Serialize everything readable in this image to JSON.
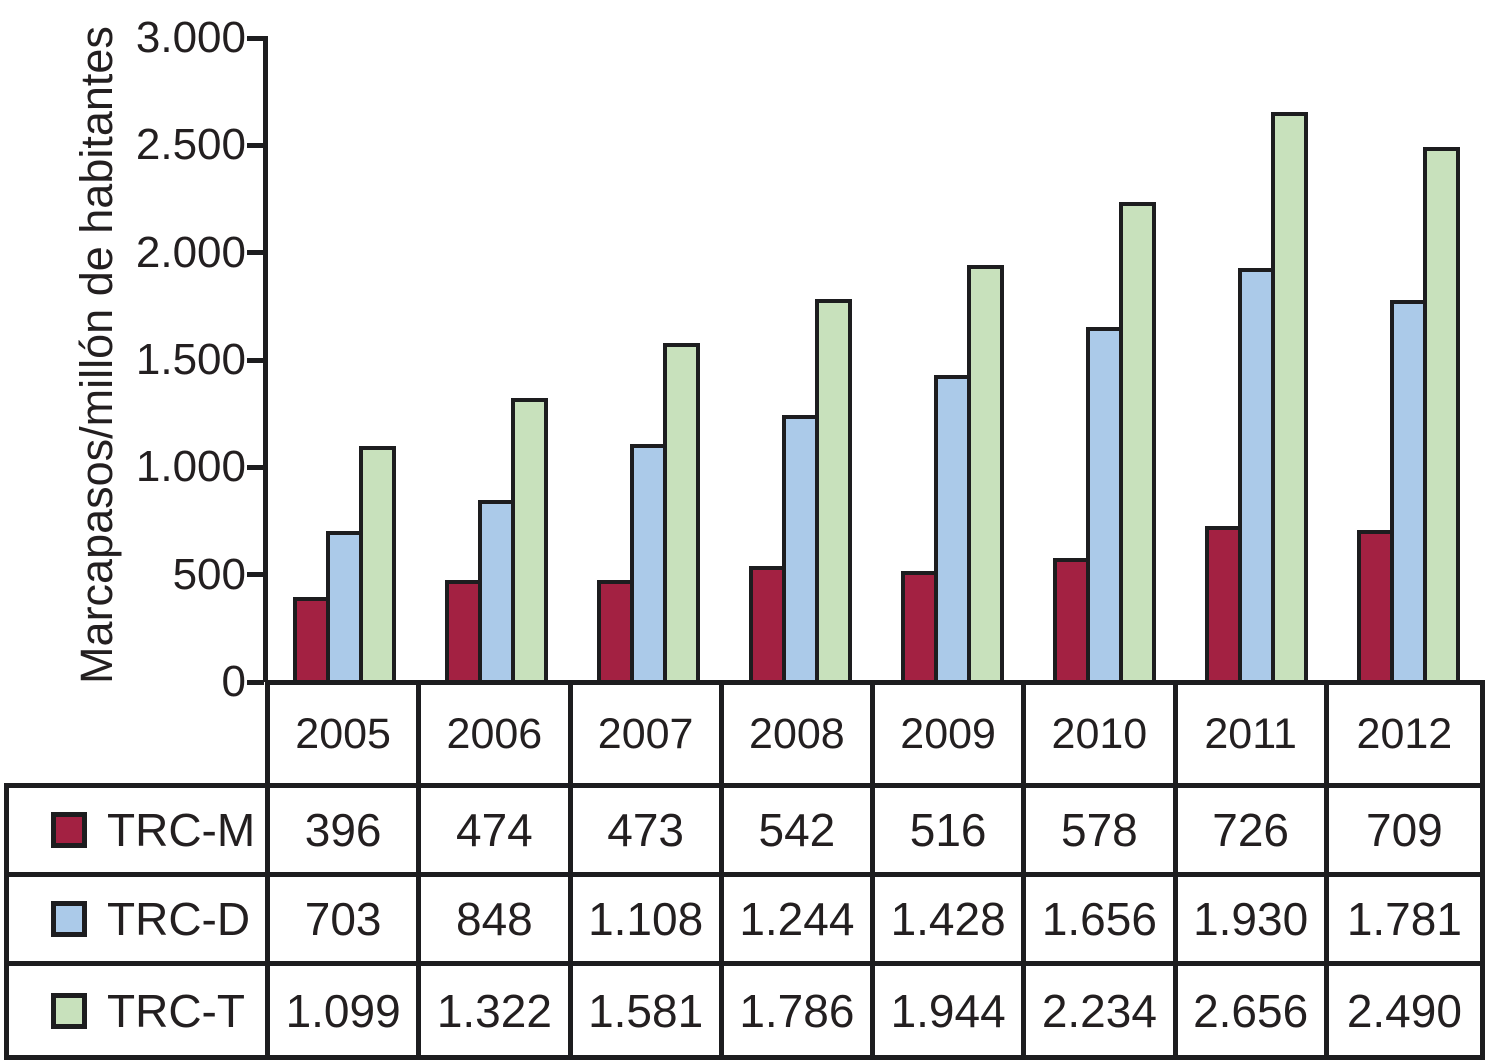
{
  "chart_data": {
    "type": "bar",
    "title": "",
    "ylabel": "Marcapasos/millón de habitantes",
    "xlabel": "",
    "ylim": [
      0,
      3000
    ],
    "grid": false,
    "legend_position": "table-rows-below-chart",
    "outline_color": "#1D1D1F",
    "y_ticks": [
      {
        "value": 3000,
        "label": "3.000"
      },
      {
        "value": 2500,
        "label": "2.500"
      },
      {
        "value": 2000,
        "label": "2.000"
      },
      {
        "value": 1500,
        "label": "1.500"
      },
      {
        "value": 1000,
        "label": "1.000"
      },
      {
        "value": 500,
        "label": "500"
      },
      {
        "value": 0,
        "label": "0"
      }
    ],
    "categories": [
      "2005",
      "2006",
      "2007",
      "2008",
      "2009",
      "2010",
      "2011",
      "2012"
    ],
    "series": [
      {
        "name": "TRC-M",
        "color": "#A32142",
        "values": [
          396,
          474,
          473,
          542,
          516,
          578,
          726,
          709
        ],
        "labels": [
          "396",
          "474",
          "473",
          "542",
          "516",
          "578",
          "726",
          "709"
        ]
      },
      {
        "name": "TRC-D",
        "color": "#ABCAE9",
        "values": [
          703,
          848,
          1108,
          1244,
          1428,
          1656,
          1930,
          1781
        ],
        "labels": [
          "703",
          "848",
          "1.108",
          "1.244",
          "1.428",
          "1.656",
          "1.930",
          "1.781"
        ]
      },
      {
        "name": "TRC-T",
        "color": "#C8E1BC",
        "values": [
          1099,
          1322,
          1581,
          1786,
          1944,
          2234,
          2656,
          2490
        ],
        "labels": [
          "1.099",
          "1.322",
          "1.581",
          "1.786",
          "1.944",
          "2.234",
          "2.656",
          "2.490"
        ]
      }
    ]
  }
}
